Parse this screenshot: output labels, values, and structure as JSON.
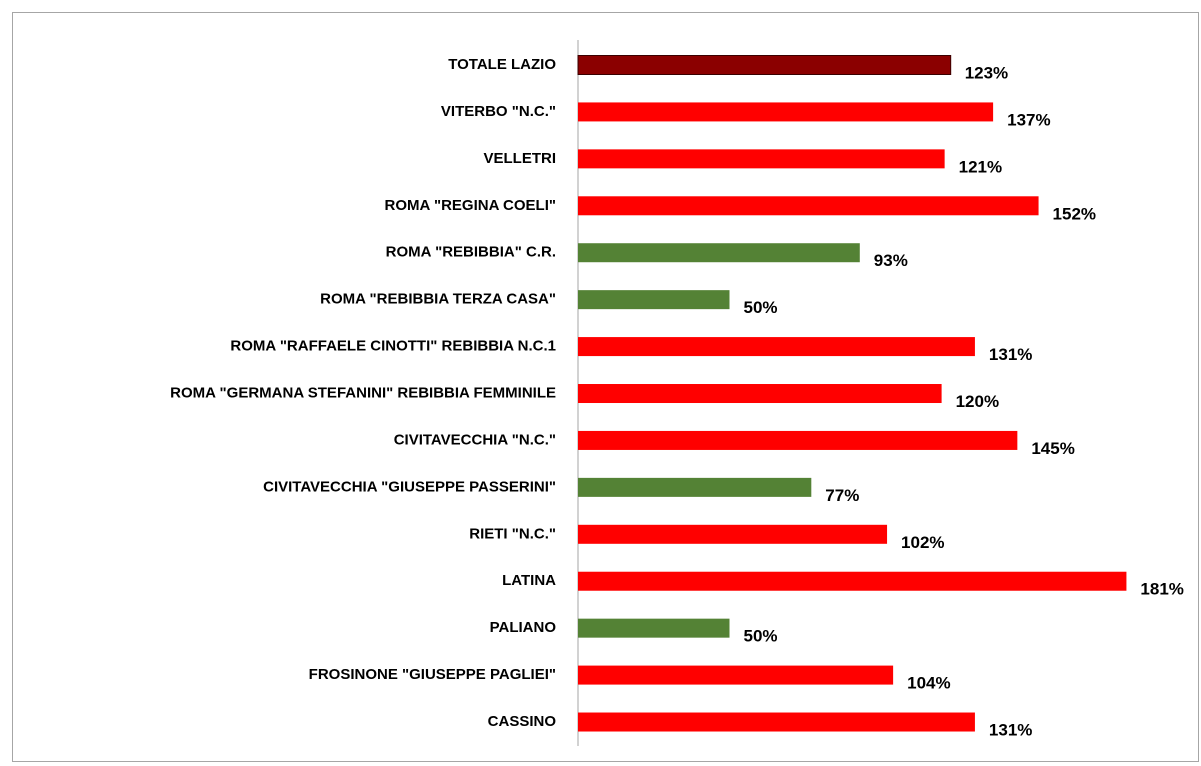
{
  "chart_data": {
    "type": "bar",
    "categories": [
      "TOTALE LAZIO",
      "VITERBO \"N.C.\"",
      "VELLETRI",
      "ROMA \"REGINA COELI\"",
      "ROMA \"REBIBBIA\" C.R.",
      "ROMA \"REBIBBIA TERZA CASA\"",
      "ROMA \"RAFFAELE CINOTTI\" REBIBBIA N.C.1",
      "ROMA \"GERMANA STEFANINI\" REBIBBIA FEMMINILE",
      "CIVITAVECCHIA \"N.C.\"",
      "CIVITAVECCHIA \"GIUSEPPE PASSERINI\"",
      "RIETI \"N.C.\"",
      "LATINA",
      "PALIANO",
      "FROSINONE \"GIUSEPPE PAGLIEI\"",
      "CASSINO"
    ],
    "values": [
      123,
      137,
      121,
      152,
      93,
      50,
      131,
      120,
      145,
      77,
      102,
      181,
      50,
      104,
      131
    ],
    "value_labels": [
      "123%",
      "137%",
      "121%",
      "152%",
      "93%",
      "50%",
      "131%",
      "120%",
      "145%",
      "77%",
      "102%",
      "181%",
      "50%",
      "104%",
      "131%"
    ],
    "colors": [
      "#8b0000",
      "#ff0000",
      "#ff0000",
      "#ff0000",
      "#548235",
      "#548235",
      "#ff0000",
      "#ff0000",
      "#ff0000",
      "#548235",
      "#ff0000",
      "#ff0000",
      "#548235",
      "#ff0000",
      "#ff0000"
    ],
    "xlim": [
      0,
      200
    ]
  }
}
